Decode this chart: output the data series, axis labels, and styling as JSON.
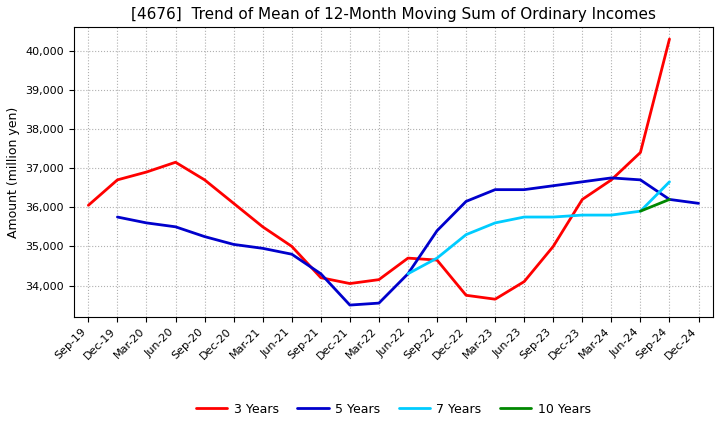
{
  "title": "[4676]  Trend of Mean of 12-Month Moving Sum of Ordinary Incomes",
  "ylabel": "Amount (million yen)",
  "x_labels": [
    "Sep-19",
    "Dec-19",
    "Mar-20",
    "Jun-20",
    "Sep-20",
    "Dec-20",
    "Mar-21",
    "Jun-21",
    "Sep-21",
    "Dec-21",
    "Mar-22",
    "Jun-22",
    "Sep-22",
    "Dec-22",
    "Mar-23",
    "Jun-23",
    "Sep-23",
    "Dec-23",
    "Mar-24",
    "Jun-24",
    "Sep-24",
    "Dec-24"
  ],
  "series": {
    "3 Years": {
      "color": "#ff0000",
      "data": [
        36050,
        36700,
        36900,
        37150,
        36700,
        36100,
        35500,
        35000,
        34200,
        34050,
        34150,
        34700,
        34650,
        33750,
        33650,
        34100,
        35000,
        36200,
        36700,
        37400,
        40300,
        null
      ]
    },
    "5 Years": {
      "color": "#0000cc",
      "data": [
        null,
        35750,
        35600,
        35500,
        35250,
        35050,
        34950,
        34800,
        34300,
        33500,
        33550,
        34300,
        35400,
        36150,
        36450,
        36450,
        36550,
        36650,
        36750,
        36700,
        36200,
        36100
      ]
    },
    "7 Years": {
      "color": "#00ccff",
      "data": [
        null,
        null,
        null,
        null,
        null,
        null,
        null,
        null,
        null,
        null,
        null,
        34300,
        34700,
        35300,
        35600,
        35750,
        35750,
        35800,
        35800,
        35900,
        36650,
        null
      ]
    },
    "10 Years": {
      "color": "#008800",
      "data": [
        null,
        null,
        null,
        null,
        null,
        null,
        null,
        null,
        null,
        null,
        null,
        null,
        null,
        null,
        null,
        null,
        null,
        null,
        null,
        35900,
        36200,
        null
      ]
    }
  },
  "ylim": [
    33200,
    40600
  ],
  "yticks": [
    34000,
    35000,
    36000,
    37000,
    38000,
    39000,
    40000
  ],
  "background_color": "#ffffff",
  "grid_color": "#b0b0b0",
  "title_fontsize": 11,
  "axis_fontsize": 9,
  "tick_fontsize": 8,
  "legend_fontsize": 9,
  "line_width": 2.0
}
